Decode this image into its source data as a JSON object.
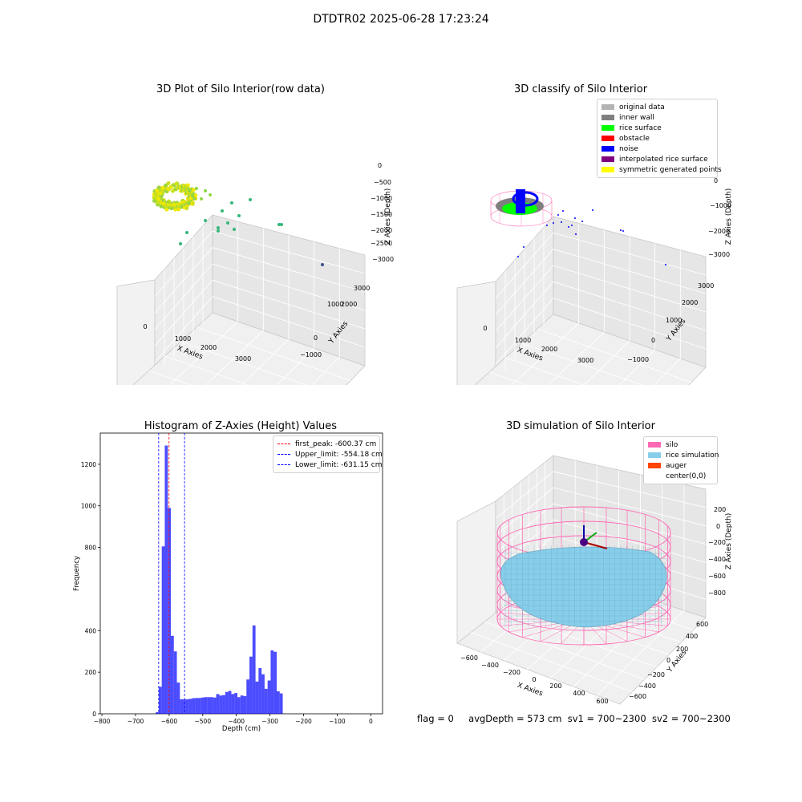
{
  "suptitle": "DTDTR02 2025-06-28 17:23:24",
  "footer": {
    "flag": "flag = 0",
    "avg": "avgDepth = 573 cm",
    "sv1": "sv1 = 700~2300",
    "sv2": "sv2 = 700~2300"
  },
  "chart_data": [
    {
      "type": "scatter",
      "panel": "top-left",
      "title": "3D Plot of Silo Interior(row data)",
      "xlabel": "X Axies",
      "ylabel": "Y Axies",
      "zlabel": "Z Axies (Depth)",
      "xticks": [
        "0",
        "1000",
        "2000",
        "3000"
      ],
      "yticks": [
        "−1000",
        "0",
        "1000",
        "2000",
        "3000"
      ],
      "zticks": [
        "0",
        "−500",
        "−1000",
        "−1500",
        "−2000",
        "−2500",
        "−3000"
      ],
      "grid": true,
      "colormap": "viridis"
    },
    {
      "type": "scatter",
      "panel": "top-right",
      "title": "3D classify of Silo Interior",
      "xlabel": "X Axies",
      "ylabel": "Y Axies",
      "zlabel": "Z Axies (Depth)",
      "xticks": [
        "0",
        "1000",
        "2000",
        "3000"
      ],
      "yticks": [
        "−1000",
        "0",
        "1000",
        "2000",
        "3000"
      ],
      "zticks": [
        "0",
        "−1000",
        "−2000",
        "−3000"
      ],
      "grid": true,
      "legend_position": "top-right",
      "legend": [
        {
          "label": "original data",
          "color": "#b3b3b3"
        },
        {
          "label": "inner wall",
          "color": "#808080"
        },
        {
          "label": "rice surface",
          "color": "#00ff00"
        },
        {
          "label": "obstacle",
          "color": "#ff0000"
        },
        {
          "label": "noise",
          "color": "#0000ff"
        },
        {
          "label": "interpolated rice surface",
          "color": "#800080"
        },
        {
          "label": "symmetric generated points",
          "color": "#ffff00"
        }
      ]
    },
    {
      "type": "bar",
      "panel": "bottom-left",
      "title": "Histogram of Z-Axies (Height) Values",
      "xlabel": "Depth (cm)",
      "ylabel": "Frequency",
      "xlim": [
        -805,
        35
      ],
      "ylim": [
        0,
        1350
      ],
      "xticks": [
        -800,
        -700,
        -600,
        -500,
        -400,
        -300,
        -200,
        -100,
        0
      ],
      "yticks": [
        0,
        200,
        400,
        800,
        1000,
        1200
      ],
      "bar_color": "#0000ff",
      "bins": [
        [
          -640,
          -631,
          8
        ],
        [
          -631,
          -622,
          130
        ],
        [
          -622,
          -613,
          805
        ],
        [
          -613,
          -604,
          1290
        ],
        [
          -604,
          -595,
          990
        ],
        [
          -595,
          -586,
          375
        ],
        [
          -586,
          -577,
          300
        ],
        [
          -577,
          -568,
          150
        ],
        [
          -568,
          -559,
          70
        ],
        [
          -559,
          -550,
          70
        ],
        [
          -550,
          -541,
          70
        ],
        [
          -541,
          -532,
          72
        ],
        [
          -532,
          -523,
          75
        ],
        [
          -523,
          -514,
          76
        ],
        [
          -514,
          -505,
          76
        ],
        [
          -505,
          -496,
          78
        ],
        [
          -496,
          -487,
          80
        ],
        [
          -487,
          -478,
          80
        ],
        [
          -478,
          -469,
          80
        ],
        [
          -469,
          -460,
          78
        ],
        [
          -460,
          -451,
          95
        ],
        [
          -451,
          -442,
          88
        ],
        [
          -442,
          -433,
          90
        ],
        [
          -433,
          -424,
          105
        ],
        [
          -424,
          -415,
          110
        ],
        [
          -415,
          -406,
          95
        ],
        [
          -406,
          -397,
          100
        ],
        [
          -397,
          -388,
          80
        ],
        [
          -388,
          -379,
          88
        ],
        [
          -379,
          -370,
          85
        ],
        [
          -370,
          -361,
          165
        ],
        [
          -361,
          -352,
          275
        ],
        [
          -352,
          -343,
          425
        ],
        [
          -343,
          -334,
          155
        ],
        [
          -334,
          -325,
          220
        ],
        [
          -325,
          -316,
          190
        ],
        [
          -316,
          -307,
          120
        ],
        [
          -307,
          -298,
          160
        ],
        [
          -298,
          -289,
          305
        ],
        [
          -289,
          -280,
          298
        ],
        [
          -280,
          -271,
          108
        ],
        [
          -271,
          -262,
          98
        ]
      ],
      "vlines": [
        {
          "label": "first_peak: -600.37 cm",
          "x": -600.37,
          "color": "#ff0000"
        },
        {
          "label": "Upper_limit: -554.18 cm",
          "x": -554.18,
          "color": "#0000ff"
        },
        {
          "label": "Lower_limit: -631.15 cm",
          "x": -631.15,
          "color": "#0000ff"
        }
      ],
      "legend_position": "top-right"
    },
    {
      "type": "surface",
      "panel": "bottom-right",
      "title": "3D simulation of Silo Interior",
      "xlabel": "X Axies",
      "ylabel": "Y Axies",
      "zlabel": "Z Axies (Depth)",
      "xticks": [
        "−600",
        "−400",
        "−200",
        "0",
        "200",
        "400",
        "600"
      ],
      "yticks": [
        "−600",
        "−400",
        "−200",
        "0",
        "200",
        "400",
        "600"
      ],
      "zticks": [
        "200",
        "0",
        "−200",
        "−400",
        "−600",
        "−800"
      ],
      "grid": true,
      "legend_position": "top-right",
      "legend": [
        {
          "label": "silo",
          "color": "#ff69b4"
        },
        {
          "label": "rice simulation",
          "color": "#87ceeb"
        },
        {
          "label": "auger",
          "color": "#ff4500"
        },
        {
          "label": "center(0,0)",
          "color": ""
        }
      ]
    }
  ]
}
